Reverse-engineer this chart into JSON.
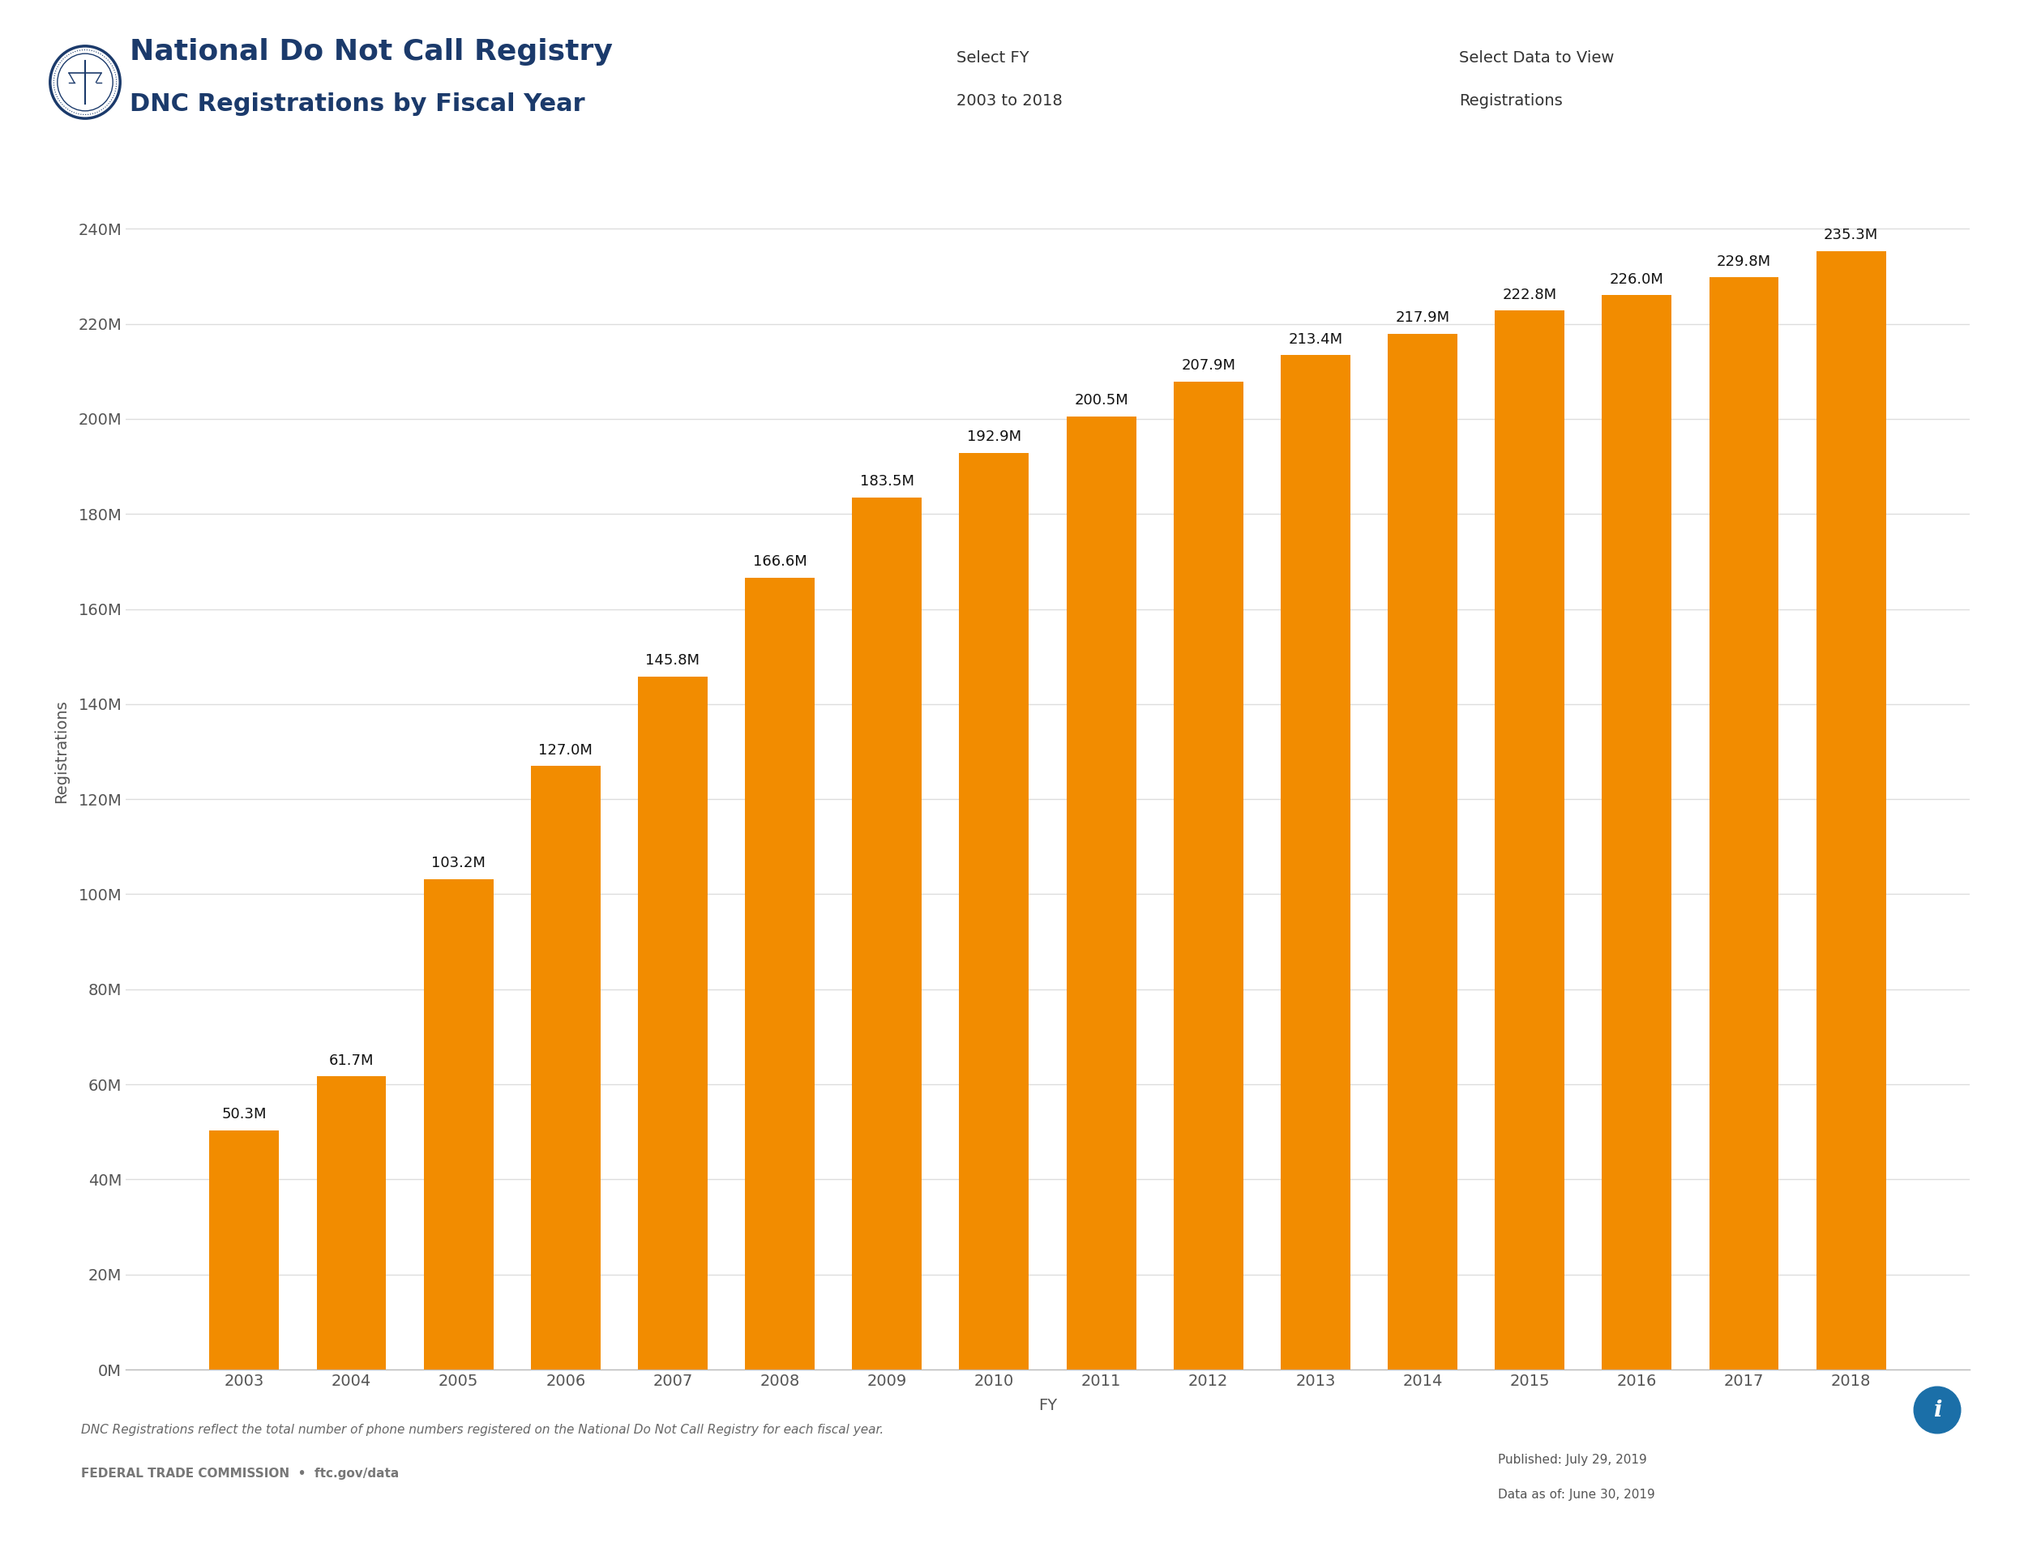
{
  "years": [
    2003,
    2004,
    2005,
    2006,
    2007,
    2008,
    2009,
    2010,
    2011,
    2012,
    2013,
    2014,
    2015,
    2016,
    2017,
    2018
  ],
  "values": [
    50.3,
    61.7,
    103.2,
    127.0,
    145.8,
    166.6,
    183.5,
    192.9,
    200.5,
    207.9,
    213.4,
    217.9,
    222.8,
    226.0,
    229.8,
    235.3
  ],
  "bar_color": "#F28C00",
  "background_color": "#FFFFFF",
  "plot_bg_color": "#FFFFFF",
  "title_line1": "National Do Not Call Registry",
  "title_line2": "DNC Registrations by Fiscal Year",
  "title_color": "#1B3A6B",
  "header_bar_color": "#1B3A6B",
  "select_fy_label": "Select FY",
  "select_fy_value": "2003 to 2018",
  "select_data_label": "Select Data to View",
  "select_data_value": "Registrations",
  "xlabel": "FY",
  "ylabel": "Registrations",
  "ylim_max": 260,
  "ytick_labels": [
    "0M",
    "20M",
    "40M",
    "60M",
    "80M",
    "100M",
    "120M",
    "140M",
    "160M",
    "180M",
    "200M",
    "220M",
    "240M"
  ],
  "ytick_values": [
    0,
    20,
    40,
    60,
    80,
    100,
    120,
    140,
    160,
    180,
    200,
    220,
    240
  ],
  "footnote": "DNC Registrations reflect the total number of phone numbers registered on the National Do Not Call Registry for each fiscal year.",
  "footer_agency": "FEDERAL TRADE COMMISSION",
  "footer_website": "ftc.gov/data",
  "footer_pub_date": "Published: July 29, 2019",
  "footer_data_date": "Data as of: June 30, 2019",
  "grid_color": "#DDDDDD",
  "axis_label_fontsize": 14,
  "axis_tick_fontsize": 14,
  "title_fontsize1": 26,
  "title_fontsize2": 22,
  "bar_label_fontsize": 13,
  "header_text_fontsize": 14,
  "footer_fontsize": 11,
  "info_icon_color": "#1B6FA8",
  "separator_color": "#CCCCCC"
}
